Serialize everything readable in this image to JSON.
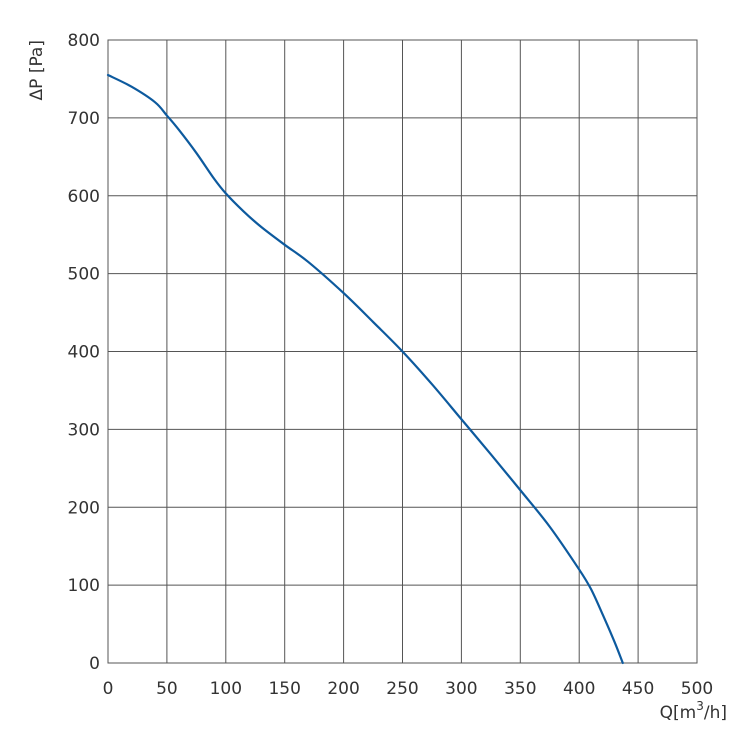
{
  "chart_data": {
    "type": "line",
    "title": "",
    "xlabel": "Q[m",
    "xlabel_sup": "3",
    "xlabel_tail": "/h]",
    "ylabel": "ΔP [Pa]",
    "xlim": [
      0,
      500
    ],
    "ylim": [
      0,
      800
    ],
    "grid": true,
    "x_ticks": [
      0,
      50,
      100,
      150,
      200,
      250,
      300,
      350,
      400,
      450,
      500
    ],
    "y_ticks": [
      0,
      100,
      200,
      300,
      400,
      500,
      600,
      700,
      800
    ],
    "series": [
      {
        "color": "#0d5a9e",
        "x": [
          0,
          20,
          40,
          50,
          60,
          75,
          90,
          100,
          115,
          130,
          150,
          170,
          200,
          225,
          250,
          275,
          300,
          325,
          350,
          375,
          400,
          410,
          420,
          430,
          437
        ],
        "y": [
          755,
          740,
          720,
          703,
          685,
          655,
          622,
          603,
          580,
          560,
          537,
          515,
          475,
          438,
          400,
          358,
          313,
          268,
          222,
          175,
          120,
          95,
          62,
          27,
          0
        ]
      }
    ]
  }
}
